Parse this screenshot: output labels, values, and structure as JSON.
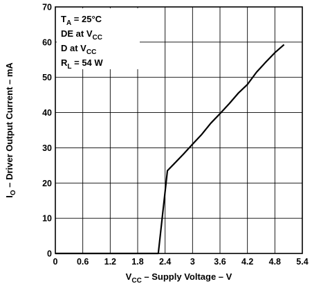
{
  "chart_data": {
    "type": "line",
    "title": "",
    "xlabel": {
      "main": "V",
      "sub": "CC",
      "rest": " – Supply Voltage – V"
    },
    "ylabel": {
      "main": "I",
      "sub": "O",
      "rest": " – Driver Output Current – mA"
    },
    "xlim": [
      0,
      5.4
    ],
    "ylim": [
      0,
      70
    ],
    "xticks": [
      0,
      0.6,
      1.2,
      1.8,
      2.4,
      3,
      3.6,
      4.2,
      4.8,
      5.4
    ],
    "xtick_labels": [
      "0",
      "0.6",
      "1.2",
      "1.8",
      "2.4",
      "3",
      "3.6",
      "4.2",
      "4.8",
      "5.4"
    ],
    "yticks": [
      0,
      10,
      20,
      30,
      40,
      50,
      60,
      70
    ],
    "ytick_labels": [
      "0",
      "10",
      "20",
      "30",
      "40",
      "50",
      "60",
      "70"
    ],
    "grid": true,
    "series": [
      {
        "x": [
          0,
          2.25,
          2.45,
          2.6,
          2.8,
          3.0,
          3.2,
          3.4,
          3.6,
          3.8,
          4.0,
          4.2,
          4.4,
          4.6,
          4.8,
          5.0
        ],
        "y": [
          0,
          0,
          23.5,
          25.5,
          28.2,
          31.0,
          33.8,
          37.0,
          39.7,
          42.5,
          45.5,
          48.0,
          51.5,
          54.3,
          57.0,
          59.3
        ]
      }
    ],
    "annotation": {
      "lines": [
        {
          "main": "T",
          "sub": "A",
          "rest": " = 25°C"
        },
        {
          "main": "DE at V",
          "sub": "CC",
          "rest": ""
        },
        {
          "main": "D at V",
          "sub": "CC",
          "rest": ""
        },
        {
          "main": "R",
          "sub": "L",
          "rest": " = 54 W"
        }
      ]
    }
  }
}
